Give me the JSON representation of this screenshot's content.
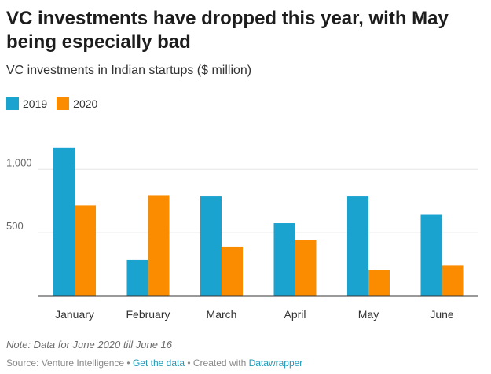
{
  "header": {
    "title": "VC investments have dropped this year, with May being especially bad",
    "subtitle": "VC investments in Indian startups ($ million)"
  },
  "colors": {
    "series_2019": "#1aa3cf",
    "series_2020": "#fb8c00",
    "gridline": "#e6e6e6",
    "baseline": "#333333"
  },
  "chart_data": {
    "type": "bar",
    "title": "VC investments have dropped this year, with May being especially bad",
    "subtitle": "VC investments in Indian startups ($ million)",
    "categories": [
      "January",
      "February",
      "March",
      "April",
      "May",
      "June"
    ],
    "series": [
      {
        "name": "2019",
        "values": [
          1170,
          285,
          785,
          575,
          785,
          640
        ]
      },
      {
        "name": "2020",
        "values": [
          715,
          795,
          390,
          445,
          210,
          245
        ]
      }
    ],
    "xlabel": "",
    "ylabel": "",
    "ylim": [
      0,
      1300
    ],
    "yticks": [
      500,
      1000
    ],
    "ytick_labels": [
      "500",
      "1,000"
    ],
    "grid": true,
    "legend_position": "top-left"
  },
  "footer": {
    "note": "Note: Data for June 2020 till June 16",
    "source_prefix": "Source: Venture Intelligence • ",
    "get_data_link": "Get the data",
    "created_with": " • Created with ",
    "datawrapper_link": "Datawrapper"
  }
}
